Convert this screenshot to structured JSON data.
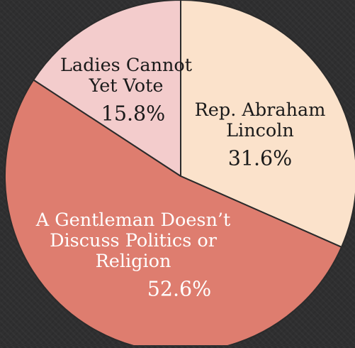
{
  "chart_data": {
    "type": "pie",
    "title": "",
    "slices": [
      {
        "label_lines": [
          "Rep. Abraham",
          "Lincoln"
        ],
        "value": 31.6,
        "value_label": "31.6%",
        "color": "#fbe2cb",
        "text_color": "#1a1a1a"
      },
      {
        "label_lines": [
          "A Gentleman Doesn’t",
          "Discuss Politics or",
          "Religion"
        ],
        "value": 52.6,
        "value_label": "52.6%",
        "color": "#de7d6f",
        "text_color": "#ffffff"
      },
      {
        "label_lines": [
          "Ladies Cannot",
          "Yet Vote"
        ],
        "value": 15.8,
        "value_label": "15.8%",
        "color": "#f3cccc",
        "text_color": "#1a1a1a"
      }
    ],
    "start_angle_deg": 0,
    "direction": "clockwise",
    "legend": "none",
    "slice_border_color": "#2b2b2b"
  }
}
